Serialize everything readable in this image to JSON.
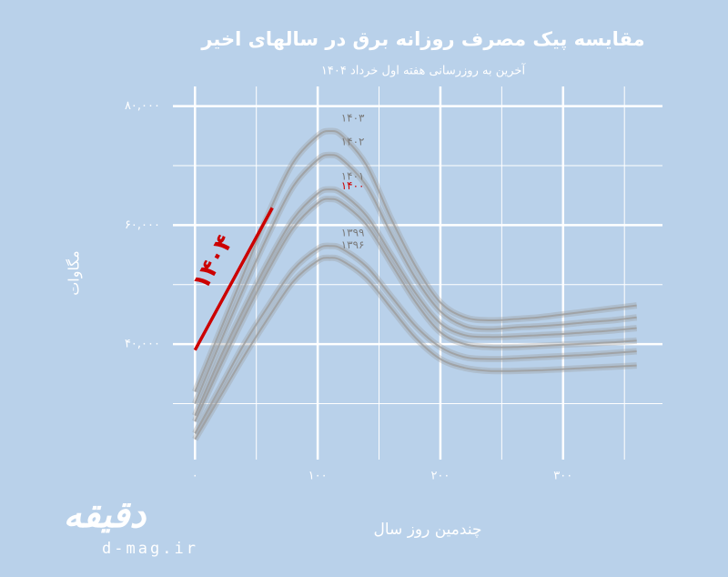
{
  "chart_data": {
    "type": "line",
    "title": "مقایسه پیک مصرف روزانه برق در سالهای اخیر",
    "subtitle": "آخرین به روزرسانی هفته اول خرداد ۱۴۰۴",
    "x_label": "چندمین روز سال",
    "y_label": "مگاوات",
    "watermark": "d-mag.ir",
    "logo": "دقیقه",
    "grid": true,
    "xlim": [
      -18,
      381
    ],
    "ylim": [
      20600,
      83300
    ],
    "xticks": [
      {
        "value": 0,
        "label": "۰"
      },
      {
        "value": 100,
        "label": "۱۰۰"
      },
      {
        "value": 200,
        "label": "۲۰۰"
      },
      {
        "value": 300,
        "label": "۳۰۰"
      }
    ],
    "yticks": [
      {
        "value": 40000,
        "label": "۴۰,۰۰۰"
      },
      {
        "value": 60000,
        "label": "۶۰,۰۰۰"
      },
      {
        "value": 80000,
        "label": "۸۰,۰۰۰"
      }
    ],
    "series": [
      {
        "name": "۱۴۰۳",
        "color": "#9c9c9c",
        "label_color": "#7a7a7a",
        "x": [
          0,
          20,
          40,
          60,
          80,
          100,
          110,
          120,
          140,
          160,
          180,
          200,
          220,
          240,
          260,
          280,
          300,
          320,
          340,
          360
        ],
        "values": [
          32000,
          42000,
          52000,
          62000,
          70500,
          75000,
          75800,
          75000,
          70000,
          61000,
          53000,
          47000,
          44500,
          44000,
          44200,
          44500,
          45000,
          45500,
          46000,
          46500
        ]
      },
      {
        "name": "۱۴۰۲",
        "color": "#9c9c9c",
        "label_color": "#7a7a7a",
        "x": [
          0,
          20,
          40,
          60,
          80,
          100,
          110,
          120,
          140,
          160,
          180,
          200,
          220,
          240,
          260,
          280,
          300,
          320,
          340,
          360
        ],
        "values": [
          30000,
          40000,
          49500,
          58500,
          66500,
          71000,
          71800,
          71000,
          66500,
          58500,
          51000,
          45500,
          43000,
          42500,
          42800,
          43000,
          43300,
          43700,
          44000,
          44500
        ]
      },
      {
        "name": "۱۴۰۱",
        "color": "#9c9c9c",
        "label_color": "#7a7a7a",
        "x": [
          0,
          20,
          40,
          60,
          80,
          100,
          110,
          120,
          140,
          160,
          180,
          200,
          220,
          240,
          260,
          280,
          300,
          320,
          340,
          360
        ],
        "values": [
          28000,
          37500,
          46000,
          54000,
          61000,
          65300,
          66000,
          65300,
          61500,
          55000,
          48500,
          43500,
          41500,
          41200,
          41300,
          41500,
          41700,
          42000,
          42300,
          42700
        ]
      },
      {
        "name": "۱۴۰۰",
        "color": "#9c9c9c",
        "label_color": "#cc0000",
        "x": [
          0,
          20,
          40,
          60,
          80,
          100,
          110,
          120,
          140,
          160,
          180,
          200,
          220,
          240,
          260,
          280,
          300,
          320,
          340,
          360
        ],
        "values": [
          27000,
          36000,
          44500,
          52500,
          59500,
          63700,
          64400,
          63700,
          60000,
          53500,
          47000,
          42000,
          40000,
          39500,
          39500,
          39700,
          39900,
          40100,
          40300,
          40600
        ]
      },
      {
        "name": "۱۳۹۹",
        "color": "#9c9c9c",
        "label_color": "#7a7a7a",
        "x": [
          0,
          20,
          40,
          60,
          80,
          100,
          110,
          120,
          140,
          160,
          180,
          200,
          220,
          240,
          260,
          280,
          300,
          320,
          340,
          360
        ],
        "values": [
          25000,
          32500,
          40000,
          46500,
          52500,
          56000,
          56500,
          56000,
          53000,
          48000,
          43000,
          39500,
          37800,
          37500,
          37600,
          37800,
          38000,
          38200,
          38500,
          38800
        ]
      },
      {
        "name": "۱۳۹۶",
        "color": "#9c9c9c",
        "label_color": "#7a7a7a",
        "x": [
          0,
          20,
          40,
          60,
          80,
          100,
          110,
          120,
          140,
          160,
          180,
          200,
          220,
          240,
          260,
          280,
          300,
          320,
          340,
          360
        ],
        "values": [
          24000,
          31000,
          38000,
          44500,
          50500,
          54000,
          54500,
          54000,
          51000,
          46000,
          41000,
          37500,
          36000,
          35500,
          35500,
          35600,
          35800,
          36000,
          36200,
          36400
        ]
      },
      {
        "name": "۱۴۰۴",
        "color": "#cc0000",
        "label_color": "#cc0000",
        "x": [
          0,
          63
        ],
        "values": [
          39000,
          62900
        ]
      }
    ]
  }
}
